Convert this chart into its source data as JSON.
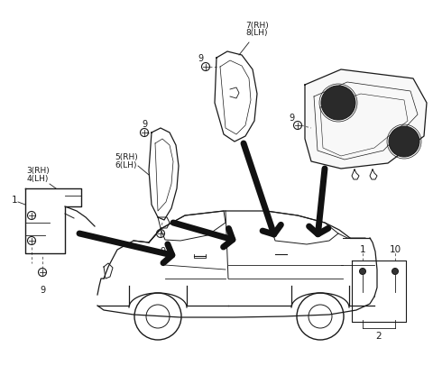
{
  "bg_color": "#ffffff",
  "line_color": "#1a1a1a",
  "gray": "#888888",
  "dark": "#222222",
  "annotations": {
    "label_78": [
      "7(RH)",
      "8(LH)"
    ],
    "label_56": [
      "5(RH)",
      "6(LH)"
    ],
    "label_34": [
      "3(RH)",
      "4(LH)"
    ],
    "label_1": "1",
    "label_2": "2",
    "label_10": "10",
    "label_9": "9"
  }
}
